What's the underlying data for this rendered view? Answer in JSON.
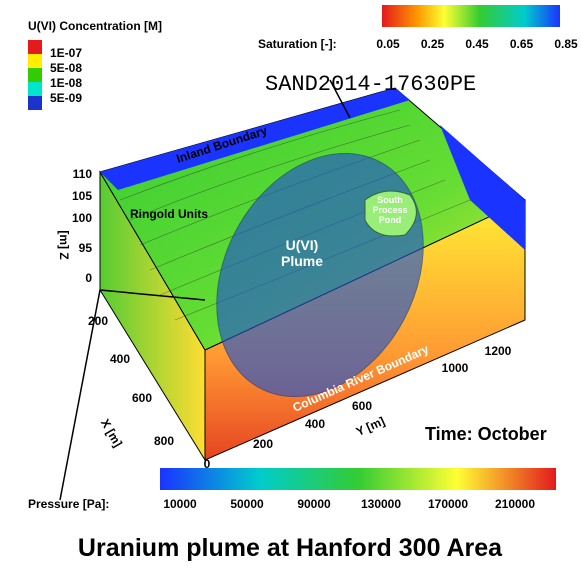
{
  "legend": {
    "title": "U(VI) Concentration [M]",
    "entries": [
      "1E-07",
      "5E-08",
      "1E-08",
      "5E-09"
    ]
  },
  "saturation": {
    "label": "Saturation [-]:",
    "ticks": [
      "0.05",
      "0.25",
      "0.45",
      "0.65",
      "0.85"
    ]
  },
  "stamp": "SAND2014-17630PE",
  "annotations": {
    "inland": "Inland Boundary",
    "ringold": "Ringold Units",
    "plume": [
      "U(VI)",
      "Plume"
    ],
    "pond": [
      "South",
      "Process",
      "Pond"
    ],
    "river": "Columbia River Boundary",
    "time": "Time: October"
  },
  "z_axis": {
    "label": "[m] Z",
    "ticks": [
      "110",
      "105",
      "100",
      "95",
      "0"
    ]
  },
  "x_axis": {
    "label": "X [m]",
    "ticks": [
      "200",
      "400",
      "600",
      "800"
    ]
  },
  "y_axis": {
    "label": "Y [m]",
    "ticks": [
      "0",
      "200",
      "400",
      "600",
      "1000",
      "1200"
    ]
  },
  "pressure": {
    "label": "Pressure [Pa]:",
    "ticks": [
      "10000",
      "50000",
      "90000",
      "130000",
      "170000",
      "210000"
    ]
  },
  "caption": "Uranium plume at Hanford 300 Area"
}
